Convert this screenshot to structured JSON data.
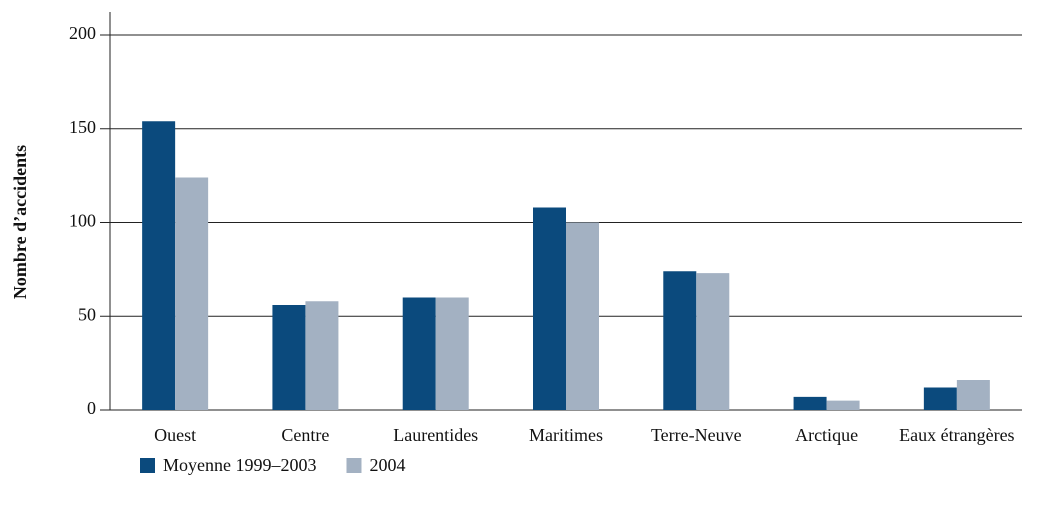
{
  "chart_data": {
    "type": "bar",
    "y_label": "Nombre d’accidents",
    "categories": [
      "Ouest",
      "Centre",
      "Laurentides",
      "Maritimes",
      "Terre-Neuve",
      "Arctique",
      "Eaux étrangères"
    ],
    "series": [
      {
        "name": "Moyenne 1999–2003",
        "color": "#0b4a7d",
        "values": [
          154,
          56,
          60,
          108,
          74,
          7,
          12
        ]
      },
      {
        "name": "2004",
        "color": "#a3b1c2",
        "values": [
          124,
          58,
          60,
          100,
          73,
          5,
          16
        ]
      }
    ],
    "ylim": [
      0,
      200
    ],
    "yticks": [
      0,
      50,
      100,
      150,
      200
    ],
    "grid": true,
    "legend": "bottom-left"
  }
}
